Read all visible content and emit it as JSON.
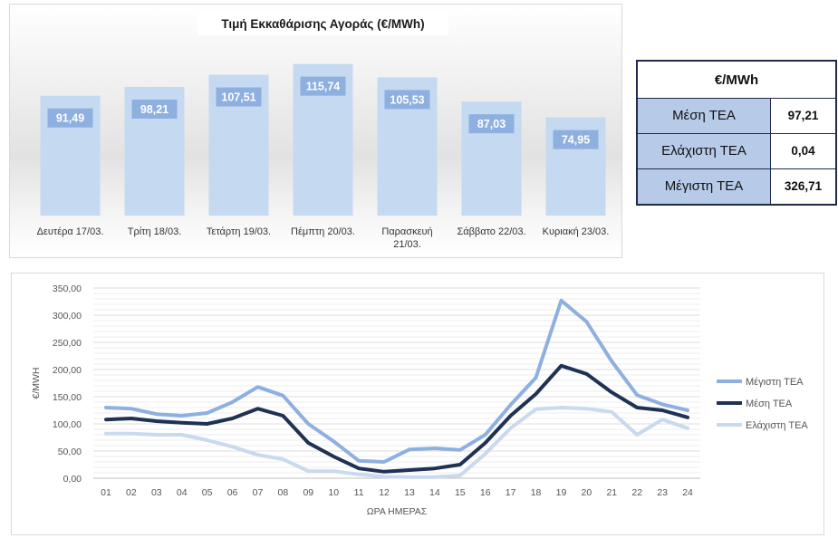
{
  "chart_data": [
    {
      "type": "bar",
      "title": "Τιμή Εκκαθάρισης Αγοράς (€/MWh)",
      "categories": [
        "Δευτέρα 17/03.",
        "Τρίτη 18/03.",
        "Τετάρτη 19/03.",
        "Πέμπτη 20/03.",
        "Παρασκευή 21/03.",
        "Σάββατο 22/03.",
        "Κυριακή 23/03."
      ],
      "category_lines": [
        [
          "Δευτέρα 17/03."
        ],
        [
          "Τρίτη 18/03."
        ],
        [
          "Τετάρτη 19/03."
        ],
        [
          "Πέμπτη 20/03."
        ],
        [
          "Παρασκευή",
          "21/03."
        ],
        [
          "Σάββατο 22/03."
        ],
        [
          "Κυριακή 23/03."
        ]
      ],
      "values": [
        91.49,
        98.21,
        107.51,
        115.74,
        105.53,
        87.03,
        74.95
      ],
      "value_labels": [
        "91,49",
        "98,21",
        "107,51",
        "115,74",
        "105,53",
        "87,03",
        "74,95"
      ],
      "ylim": [
        0,
        130
      ],
      "grid": false,
      "colors": {
        "bar": "#c5d9f1",
        "label_bg": "#8eb0e0"
      }
    },
    {
      "type": "line",
      "title": "",
      "xlabel": "ΩΡΑ ΗΜΕΡΑΣ",
      "ylabel": "€/MWH",
      "x": [
        "01",
        "02",
        "03",
        "04",
        "05",
        "06",
        "07",
        "08",
        "09",
        "10",
        "11",
        "12",
        "13",
        "14",
        "15",
        "16",
        "17",
        "18",
        "19",
        "20",
        "21",
        "22",
        "23",
        "24"
      ],
      "ylim": [
        0,
        350
      ],
      "yticks": [
        "0,00",
        "50,00",
        "100,00",
        "150,00",
        "200,00",
        "250,00",
        "300,00",
        "350,00"
      ],
      "grid": true,
      "legend": "right",
      "series": [
        {
          "name": "Μέγιστη ΤΕΑ",
          "color": "#8eb0e0",
          "values": [
            130,
            128,
            118,
            115,
            120,
            140,
            168,
            152,
            100,
            68,
            32,
            30,
            53,
            55,
            52,
            80,
            135,
            185,
            327,
            288,
            215,
            153,
            136,
            125
          ]
        },
        {
          "name": "Μέση ΤΕΑ",
          "color": "#1f3253",
          "values": [
            108,
            110,
            105,
            102,
            100,
            110,
            128,
            115,
            65,
            40,
            18,
            12,
            15,
            18,
            25,
            65,
            115,
            155,
            207,
            192,
            158,
            130,
            125,
            112
          ]
        },
        {
          "name": "Ελάχιστη ΤΕΑ",
          "color": "#c9d9ee",
          "values": [
            82,
            82,
            80,
            80,
            70,
            58,
            43,
            35,
            13,
            13,
            7,
            3,
            2,
            2,
            5,
            45,
            92,
            127,
            130,
            128,
            122,
            80,
            108,
            92
          ]
        }
      ]
    }
  ],
  "stats_table": {
    "header": "€/MWh",
    "rows": [
      {
        "label": "Μέση ΤΕΑ",
        "value": "97,21"
      },
      {
        "label": "Ελάχιστη ΤΕΑ",
        "value": "0,04"
      },
      {
        "label": "Μέγιστη ΤΕΑ",
        "value": "326,71"
      }
    ]
  }
}
